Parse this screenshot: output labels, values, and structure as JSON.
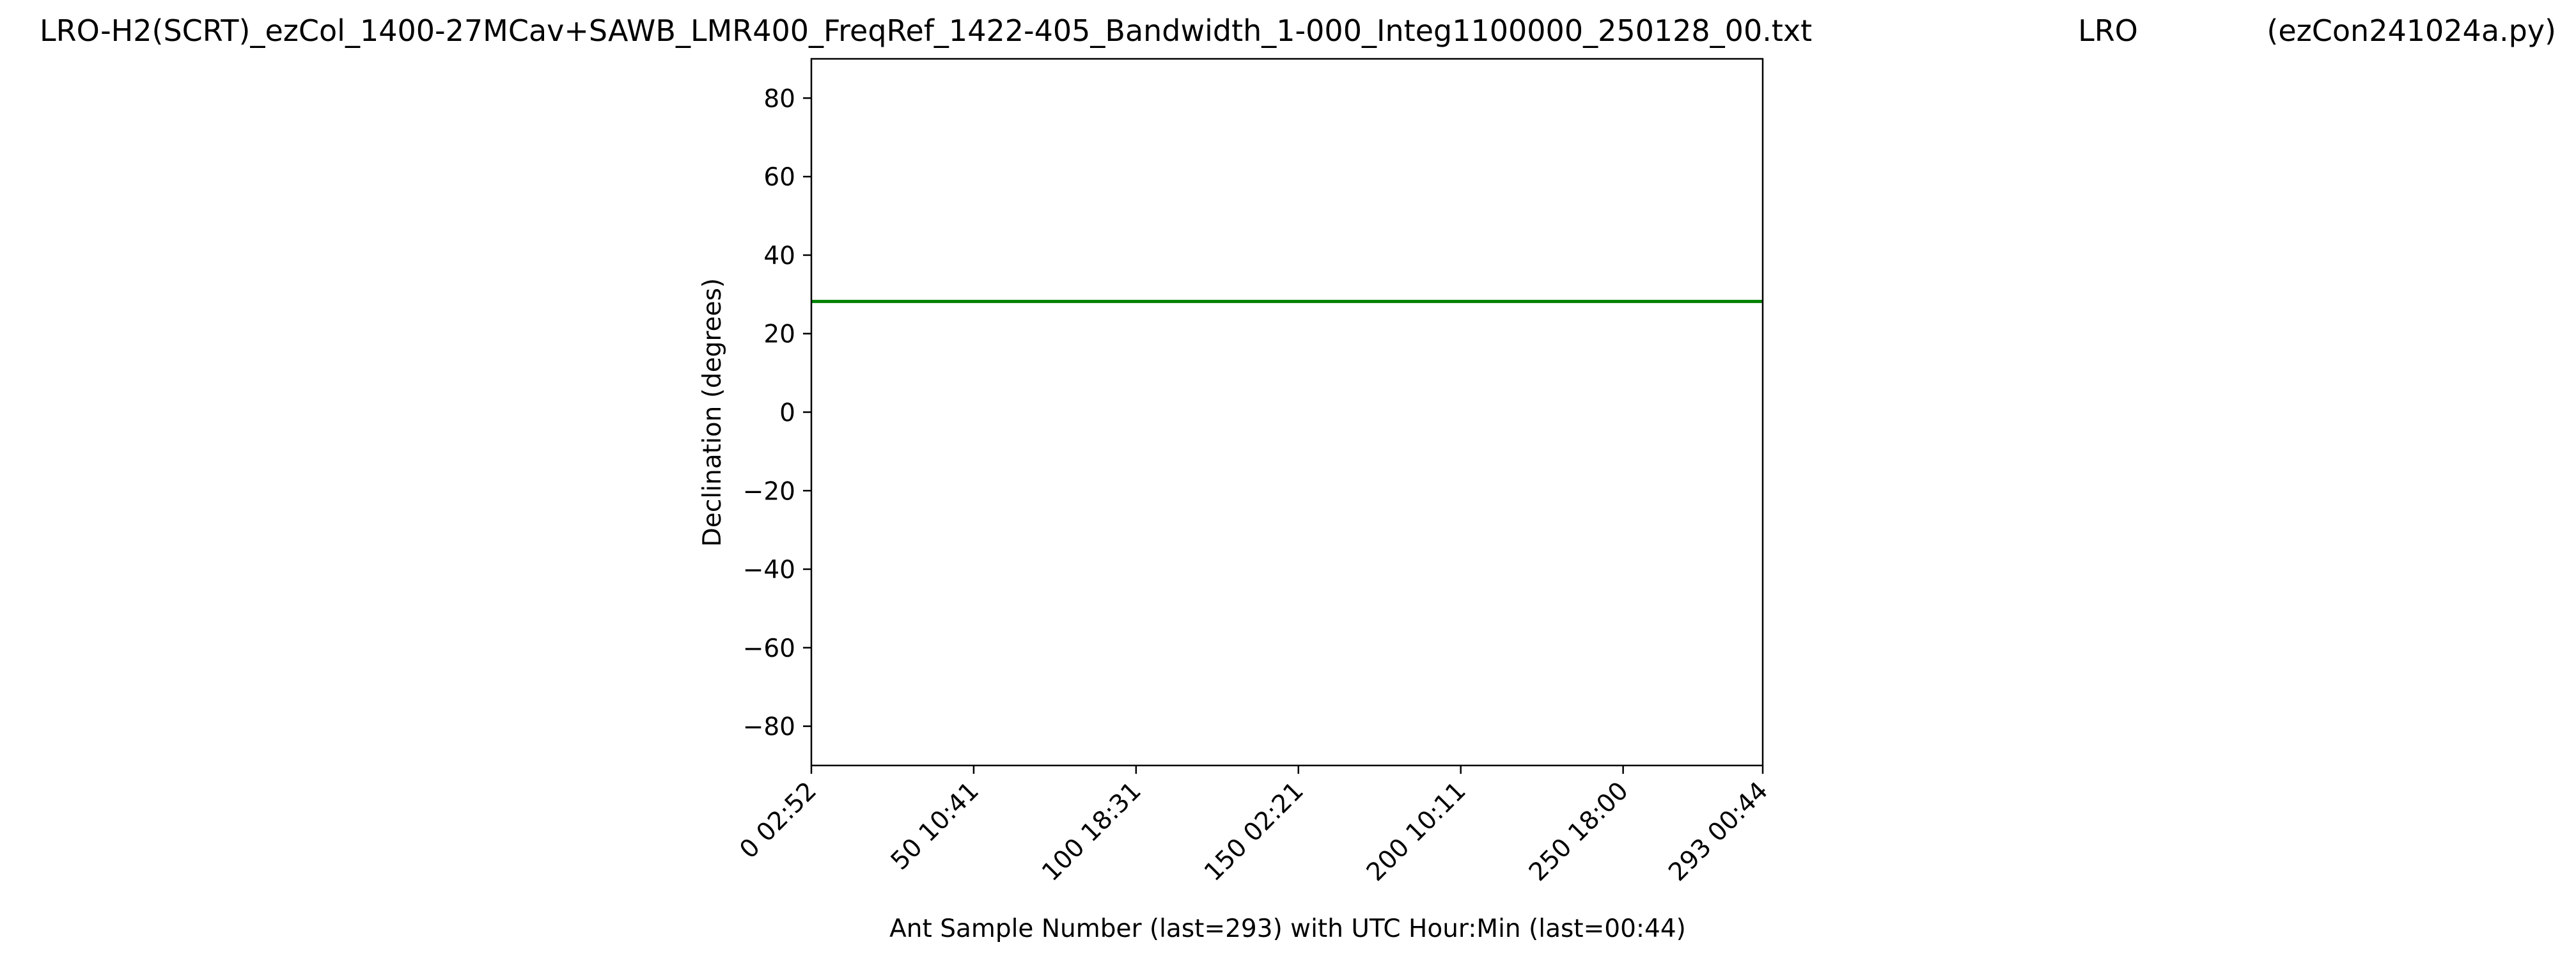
{
  "chart_data": {
    "type": "line",
    "title": "LRO-H2(SCRT)_ezCol_1400-27MCav+SAWB_LMR400_FreqRef_1422-405_Bandwidth_1-000_Integ1100000_250128_00.txt",
    "title_center": "LRO",
    "title_right": "(ezCon241024a.py)",
    "xlabel": "Ant Sample Number (last=293) with UTC Hour:Min (last=00:44)",
    "ylabel": "Declination (degrees)",
    "xlim": [
      0,
      293
    ],
    "ylim": [
      -90,
      90
    ],
    "xticks": [
      {
        "value": 0,
        "label": "0  02:52"
      },
      {
        "value": 50,
        "label": "50  10:41"
      },
      {
        "value": 100,
        "label": "100  18:31"
      },
      {
        "value": 150,
        "label": "150  02:21"
      },
      {
        "value": 200,
        "label": "200  10:11"
      },
      {
        "value": 250,
        "label": "250  18:00"
      },
      {
        "value": 293,
        "label": "293  00:44"
      }
    ],
    "yticks": [
      {
        "value": -80,
        "label": "−80"
      },
      {
        "value": -60,
        "label": "−60"
      },
      {
        "value": -40,
        "label": "−40"
      },
      {
        "value": -20,
        "label": "−20"
      },
      0,
      20,
      40,
      60,
      80
    ],
    "series": [
      {
        "color": "#008000",
        "x": [
          0,
          293
        ],
        "values": [
          28.2,
          28.2
        ]
      }
    ]
  }
}
